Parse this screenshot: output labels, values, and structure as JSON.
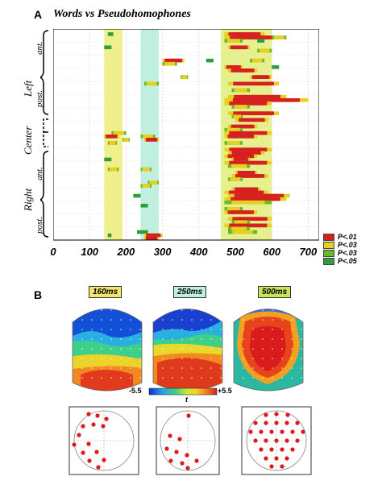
{
  "panelA": {
    "letter": "A",
    "title": "Words vs Pseudohomophones",
    "regions": {
      "left": "Left",
      "center": "Center",
      "right": "Right"
    },
    "subs": {
      "left_ant": "ant.",
      "left_post": "post.",
      "right_ant": "ant.",
      "right_post": "post."
    },
    "x_ticks": [
      "0",
      "100",
      "200",
      "300",
      "400",
      "500",
      "600",
      "700"
    ],
    "legend": [
      {
        "label": "P<.01",
        "color": "#d62020"
      },
      {
        "label": "P<.03",
        "color": "#e8d020"
      },
      {
        "label": "P<.03",
        "color": "#6cb82a"
      },
      {
        "label": "P<.05",
        "color": "#2f9e3a"
      }
    ],
    "windows": [
      {
        "from": 140,
        "to": 190,
        "color": "#f0f08a"
      },
      {
        "from": 240,
        "to": 290,
        "color": "#bff0de"
      },
      {
        "from": 460,
        "to": 600,
        "color": "#e6f08c"
      }
    ]
  },
  "chart_data": {
    "type": "heatmap",
    "xlim": [
      0,
      730
    ],
    "rows": 64,
    "segments": [
      [
        1,
        470,
        580,
        3
      ],
      [
        1,
        150,
        165,
        1
      ],
      [
        2,
        470,
        620,
        3
      ],
      [
        2,
        600,
        640,
        2
      ],
      [
        3,
        470,
        520,
        2
      ],
      [
        3,
        560,
        580,
        1
      ],
      [
        5,
        140,
        160,
        1
      ],
      [
        5,
        480,
        540,
        3
      ],
      [
        6,
        560,
        600,
        2
      ],
      [
        9,
        300,
        360,
        3
      ],
      [
        9,
        420,
        440,
        1
      ],
      [
        9,
        540,
        580,
        2
      ],
      [
        10,
        300,
        340,
        2
      ],
      [
        11,
        470,
        520,
        3
      ],
      [
        11,
        600,
        620,
        1
      ],
      [
        12,
        480,
        560,
        3
      ],
      [
        14,
        350,
        370,
        2
      ],
      [
        14,
        540,
        600,
        3
      ],
      [
        16,
        250,
        290,
        2
      ],
      [
        16,
        480,
        620,
        3
      ],
      [
        18,
        490,
        540,
        2
      ],
      [
        20,
        480,
        640,
        3
      ],
      [
        21,
        470,
        700,
        3
      ],
      [
        22,
        470,
        600,
        3
      ],
      [
        23,
        490,
        540,
        2
      ],
      [
        25,
        480,
        620,
        3
      ],
      [
        26,
        490,
        520,
        2
      ],
      [
        27,
        500,
        590,
        3
      ],
      [
        29,
        480,
        560,
        3
      ],
      [
        30,
        470,
        520,
        2
      ],
      [
        31,
        160,
        200,
        2
      ],
      [
        31,
        470,
        600,
        3
      ],
      [
        32,
        140,
        180,
        3
      ],
      [
        32,
        240,
        280,
        2
      ],
      [
        32,
        470,
        560,
        3
      ],
      [
        33,
        190,
        210,
        2
      ],
      [
        33,
        250,
        290,
        3
      ],
      [
        34,
        150,
        175,
        2
      ],
      [
        34,
        470,
        520,
        2
      ],
      [
        36,
        470,
        600,
        3
      ],
      [
        37,
        480,
        580,
        3
      ],
      [
        38,
        470,
        560,
        3
      ],
      [
        39,
        140,
        160,
        1
      ],
      [
        39,
        490,
        540,
        3
      ],
      [
        40,
        470,
        600,
        3
      ],
      [
        41,
        480,
        540,
        2
      ],
      [
        42,
        150,
        180,
        2
      ],
      [
        42,
        240,
        270,
        2
      ],
      [
        43,
        500,
        560,
        3
      ],
      [
        44,
        490,
        590,
        3
      ],
      [
        45,
        480,
        520,
        2
      ],
      [
        46,
        260,
        290,
        2
      ],
      [
        47,
        240,
        270,
        2
      ],
      [
        48,
        490,
        570,
        3
      ],
      [
        49,
        470,
        590,
        3
      ],
      [
        50,
        220,
        240,
        1
      ],
      [
        50,
        480,
        650,
        3
      ],
      [
        51,
        470,
        640,
        3
      ],
      [
        52,
        470,
        600,
        2
      ],
      [
        53,
        240,
        260,
        1
      ],
      [
        54,
        470,
        520,
        2
      ],
      [
        55,
        470,
        560,
        3
      ],
      [
        57,
        480,
        600,
        3
      ],
      [
        58,
        490,
        540,
        2
      ],
      [
        59,
        470,
        600,
        3
      ],
      [
        60,
        480,
        540,
        2
      ],
      [
        61,
        230,
        260,
        1
      ],
      [
        61,
        480,
        560,
        2
      ],
      [
        62,
        150,
        160,
        1
      ],
      [
        62,
        250,
        300,
        3
      ],
      [
        63,
        250,
        290,
        3
      ]
    ]
  },
  "panelB": {
    "letter": "B",
    "times": [
      {
        "label": "160ms",
        "bg": "#f3e46a"
      },
      {
        "label": "250ms",
        "bg": "#bff0de"
      },
      {
        "label": "500ms",
        "bg": "#c8e45a"
      }
    ],
    "colorbar": {
      "min": "-5.5",
      "mid": "t",
      "max": "+5.5"
    },
    "electrode_counts": [
      14,
      10,
      28
    ]
  }
}
